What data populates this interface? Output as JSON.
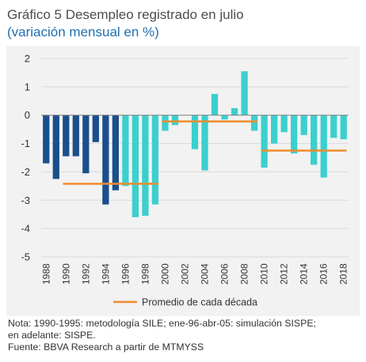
{
  "header": {
    "title": "Gráfico 5 Desempleo registrado en julio",
    "subtitle": "(variación mensual en %)"
  },
  "notes": {
    "line1": "Nota: 1990-1995: metodología SILE; ene-96-abr-05: simulación SISPE;",
    "line2": "en adelante: SISPE.",
    "line3": "Fuente: BBVA Research a partir de MTMYSS"
  },
  "colors": {
    "bar_dark": "#1a4f8b",
    "bar_light": "#3ccfcf",
    "average_line": "#f08a2c",
    "background": "#f2f2f2"
  },
  "chart_data": {
    "type": "bar",
    "x": [
      1988,
      1989,
      1990,
      1991,
      1992,
      1993,
      1994,
      1995,
      1996,
      1997,
      1998,
      1999,
      2000,
      2001,
      2002,
      2003,
      2004,
      2005,
      2006,
      2007,
      2008,
      2009,
      2010,
      2011,
      2012,
      2013,
      2014,
      2015,
      2016,
      2017,
      2018
    ],
    "values": [
      -1.7,
      -2.25,
      -1.45,
      -1.45,
      -2.05,
      -0.95,
      -3.15,
      -2.65,
      -2.5,
      -3.6,
      -3.55,
      -3.15,
      -0.55,
      -0.35,
      0.0,
      -1.2,
      -1.95,
      0.75,
      -0.15,
      0.25,
      1.55,
      -0.55,
      -1.85,
      -1.0,
      -0.6,
      -1.35,
      -0.7,
      -1.75,
      -2.2,
      -0.8,
      -0.85
    ],
    "bar_colors": [
      "dark",
      "dark",
      "dark",
      "dark",
      "dark",
      "dark",
      "dark",
      "dark",
      "light",
      "light",
      "light",
      "light",
      "light",
      "light",
      "light",
      "light",
      "light",
      "light",
      "light",
      "light",
      "light",
      "light",
      "light",
      "light",
      "light",
      "light",
      "light",
      "light",
      "light",
      "light",
      "light"
    ],
    "series": [
      {
        "name": "Promedio de cada década",
        "type": "line",
        "segments": [
          {
            "from": 1990,
            "to": 1999,
            "value": -2.42
          },
          {
            "from": 2000,
            "to": 2009,
            "value": -0.22
          },
          {
            "from": 2010,
            "to": 2018,
            "value": -1.25
          }
        ]
      }
    ],
    "xticks": [
      "1988",
      "1990",
      "1992",
      "1994",
      "1996",
      "1998",
      "2000",
      "2002",
      "2004",
      "2006",
      "2008",
      "2010",
      "2012",
      "2014",
      "2016",
      "2018"
    ],
    "yticks": [
      "2",
      "1",
      "0",
      "-1",
      "-2",
      "-3",
      "-4",
      "-5"
    ],
    "ylim": [
      -5,
      2
    ],
    "legend": {
      "position": "bottom",
      "label": "Promedio de cada década"
    }
  }
}
